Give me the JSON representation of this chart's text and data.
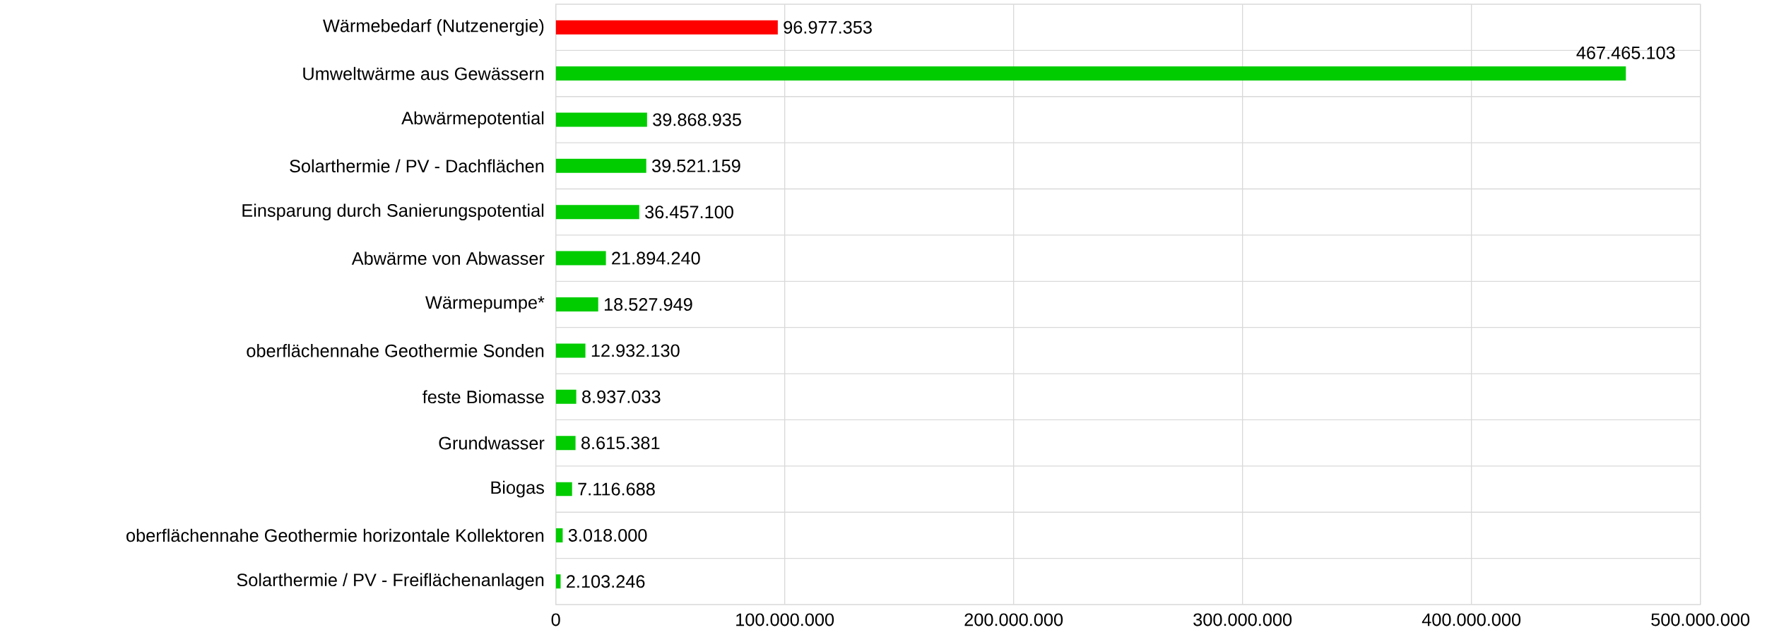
{
  "chart_data": {
    "type": "bar",
    "orientation": "horizontal",
    "categories": [
      "Wärmebedarf (Nutzenergie)",
      "Umweltwärme aus Gewässern",
      "Abwärmepotential",
      "Solarthermie / PV - Dachflächen",
      "Einsparung durch Sanierungspotential",
      "Abwärme von Abwasser",
      "Wärmepumpe*",
      "oberflächennahe Geothermie Sonden",
      "feste Biomasse",
      "Grundwasser",
      "Biogas",
      "oberflächennahe Geothermie horizontale Kollektoren",
      "Solarthermie / PV - Freiflächenanlagen"
    ],
    "values": [
      96977353,
      467465103,
      39868935,
      39521159,
      36457100,
      21894240,
      18527949,
      12932130,
      8937033,
      8615381,
      7116688,
      3018000,
      2103246
    ],
    "value_labels": [
      "96.977.353",
      "467.465.103",
      "39.868.935",
      "39.521.159",
      "36.457.100",
      "21.894.240",
      "18.527.949",
      "12.932.130",
      "8.937.033",
      "8.615.381",
      "7.116.688",
      "3.018.000",
      "2.103.246"
    ],
    "colors": [
      "#ff0000",
      "#00cc00",
      "#00cc00",
      "#00cc00",
      "#00cc00",
      "#00cc00",
      "#00cc00",
      "#00cc00",
      "#00cc00",
      "#00cc00",
      "#00cc00",
      "#00cc00",
      "#00cc00"
    ],
    "xlim": [
      0,
      500000000
    ],
    "xticks": [
      0,
      {
        "value": 100000000,
        "label": "100.000.000"
      },
      {
        "value": 200000000,
        "label": "200.000.000"
      },
      {
        "value": 300000000,
        "label": "300.000.000"
      },
      {
        "value": 400000000,
        "label": "400.000.000"
      },
      {
        "value": 500000000,
        "label": "500.000.000"
      }
    ],
    "grid": true
  }
}
